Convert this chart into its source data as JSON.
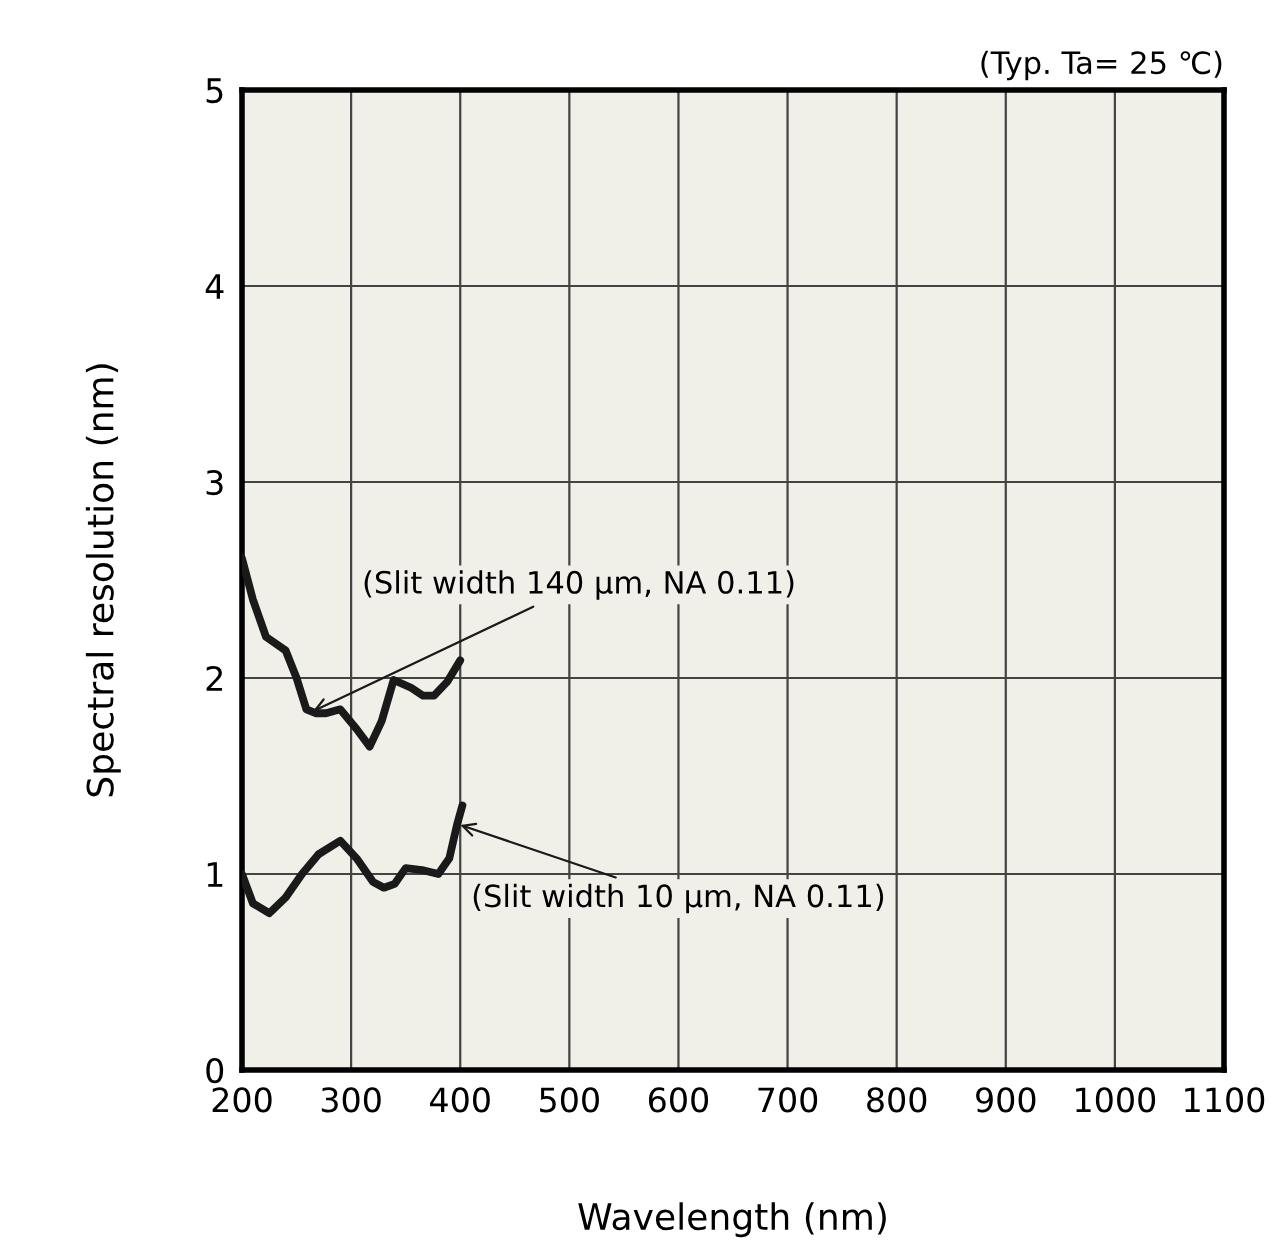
{
  "chart_data": {
    "type": "line",
    "subtitle": "(Typ. Ta= 25 ℃)",
    "xlabel": "Wavelength (nm)",
    "ylabel": "Spectral resolution (nm)",
    "xlim": [
      200,
      1100
    ],
    "xticks": [
      200,
      300,
      400,
      500,
      600,
      700,
      800,
      900,
      1000,
      1100
    ],
    "ylim": [
      0,
      5
    ],
    "yticks": [
      0,
      1,
      2,
      3,
      4,
      5
    ],
    "grid": true,
    "series": [
      {
        "color": "#1a1a1a",
        "x": [
          200,
          210,
          222,
          240,
          250,
          259,
          268,
          277,
          290,
          305,
          317,
          328,
          339,
          355,
          366,
          376,
          388,
          400
        ],
        "values": [
          2.61,
          2.4,
          2.21,
          2.14,
          2.0,
          1.84,
          1.82,
          1.82,
          1.84,
          1.74,
          1.65,
          1.78,
          1.99,
          1.95,
          1.91,
          1.91,
          1.98,
          2.09
        ]
      },
      {
        "color": "#1a1a1a",
        "x": [
          200,
          210,
          225,
          240,
          255,
          270,
          290,
          305,
          320,
          330,
          340,
          350,
          365,
          380,
          390,
          397,
          402
        ],
        "values": [
          1.0,
          0.85,
          0.8,
          0.88,
          1.0,
          1.1,
          1.17,
          1.08,
          0.96,
          0.93,
          0.95,
          1.03,
          1.02,
          1.0,
          1.08,
          1.25,
          1.35
        ]
      }
    ],
    "annotations": [
      {
        "text": "(Slit width 140 µm, NA 0.11)",
        "x": 265,
        "y": 1.83
      },
      {
        "text": "(Slit width 10 µm, NA 0.11)",
        "x": 400,
        "y": 1.25
      }
    ]
  }
}
